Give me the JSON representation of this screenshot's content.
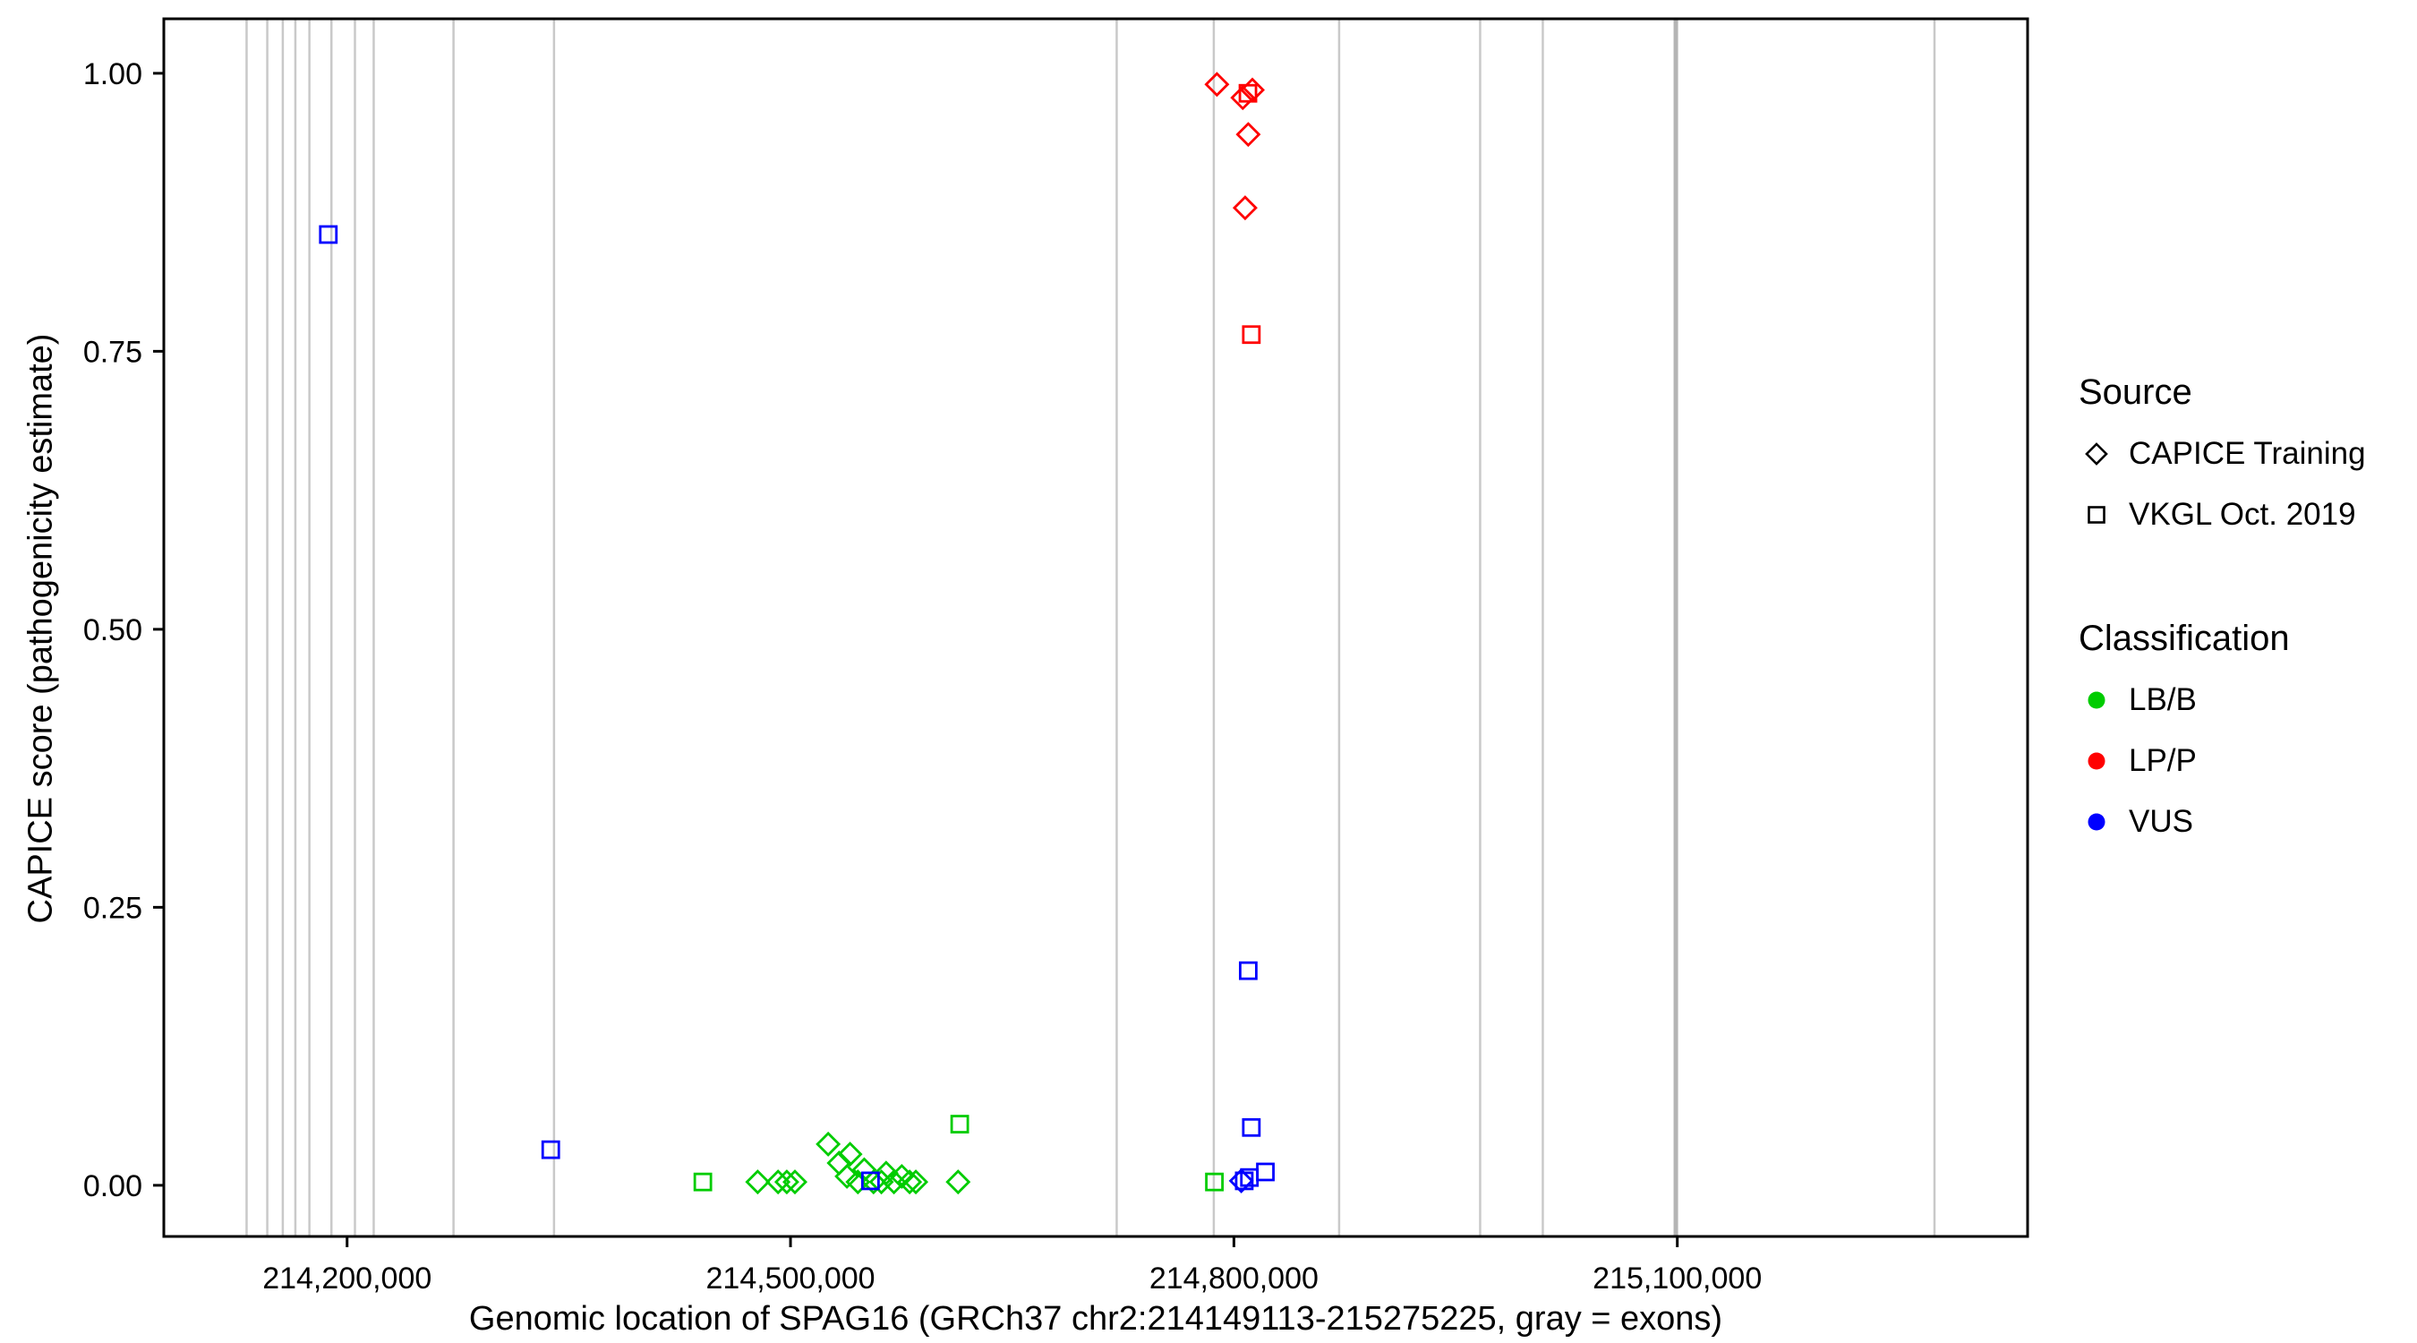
{
  "chart_data": {
    "type": "scatter",
    "title": "",
    "xlabel": "Genomic location of SPAG16 (GRCh37 chr2:214149113-215275225, gray = exons)",
    "ylabel": "CAPICE score (pathogenicity estimate)",
    "xlim": [
      214076000,
      215337000
    ],
    "ylim": [
      -0.046,
      1.049
    ],
    "x_ticks": [
      {
        "value": 214200000,
        "label": "214,200,000"
      },
      {
        "value": 214500000,
        "label": "214,500,000"
      },
      {
        "value": 214800000,
        "label": "214,800,000"
      },
      {
        "value": 215100000,
        "label": "215,100,000"
      }
    ],
    "y_ticks": [
      {
        "value": 0.0,
        "label": "0.00"
      },
      {
        "value": 0.25,
        "label": "0.25"
      },
      {
        "value": 0.5,
        "label": "0.50"
      },
      {
        "value": 0.75,
        "label": "0.75"
      },
      {
        "value": 1.0,
        "label": "1.00"
      }
    ],
    "grid": false,
    "legend_position": "right",
    "exon_color": "#c9c9c9",
    "exon_wide_color": "#b5b5b5",
    "series_colors": {
      "LB/B": "#00cc00",
      "LP/P": "#ff0000",
      "VUS": "#0000ff"
    },
    "shape_by_source": {
      "CAPICE Training": "diamond",
      "VKGL Oct. 2019": "square"
    },
    "exons": [
      {
        "x": 214132000
      },
      {
        "x": 214146000
      },
      {
        "x": 214156500
      },
      {
        "x": 214165000
      },
      {
        "x": 214174500
      },
      {
        "x": 214189400
      },
      {
        "x": 214205300
      },
      {
        "x": 214218000
      },
      {
        "x": 214272000
      },
      {
        "x": 214340000
      },
      {
        "x": 214720700
      },
      {
        "x": 214786400
      },
      {
        "x": 214871200
      },
      {
        "x": 214966600
      },
      {
        "x": 215009000
      },
      {
        "x": 215099000,
        "wide": true
      },
      {
        "x": 215274000
      }
    ],
    "points": [
      {
        "x": 214477800,
        "y": 0.003,
        "classification": "LB/B",
        "source": "CAPICE Training"
      },
      {
        "x": 214491600,
        "y": 0.003,
        "classification": "LB/B",
        "source": "CAPICE Training"
      },
      {
        "x": 214497500,
        "y": 0.003,
        "classification": "LB/B",
        "source": "CAPICE Training"
      },
      {
        "x": 214503000,
        "y": 0.003,
        "classification": "LB/B",
        "source": "CAPICE Training"
      },
      {
        "x": 214525500,
        "y": 0.037,
        "classification": "LB/B",
        "source": "CAPICE Training"
      },
      {
        "x": 214532900,
        "y": 0.02,
        "classification": "LB/B",
        "source": "CAPICE Training"
      },
      {
        "x": 214538200,
        "y": 0.008,
        "classification": "LB/B",
        "source": "CAPICE Training"
      },
      {
        "x": 214540300,
        "y": 0.028,
        "classification": "LB/B",
        "source": "CAPICE Training"
      },
      {
        "x": 214545600,
        "y": 0.003,
        "classification": "LB/B",
        "source": "CAPICE Training"
      },
      {
        "x": 214549900,
        "y": 0.014,
        "classification": "LB/B",
        "source": "CAPICE Training"
      },
      {
        "x": 214556200,
        "y": 0.003,
        "classification": "LB/B",
        "source": "CAPICE Training"
      },
      {
        "x": 214561500,
        "y": 0.003,
        "classification": "LB/B",
        "source": "CAPICE Training"
      },
      {
        "x": 214564700,
        "y": 0.011,
        "classification": "LB/B",
        "source": "CAPICE Training"
      },
      {
        "x": 214570000,
        "y": 0.003,
        "classification": "LB/B",
        "source": "CAPICE Training"
      },
      {
        "x": 214575300,
        "y": 0.008,
        "classification": "LB/B",
        "source": "CAPICE Training"
      },
      {
        "x": 214580600,
        "y": 0.003,
        "classification": "LB/B",
        "source": "CAPICE Training"
      },
      {
        "x": 214584800,
        "y": 0.003,
        "classification": "LB/B",
        "source": "CAPICE Training"
      },
      {
        "x": 214613400,
        "y": 0.003,
        "classification": "LB/B",
        "source": "CAPICE Training"
      },
      {
        "x": 214440700,
        "y": 0.003,
        "classification": "LB/B",
        "source": "VKGL Oct. 2019"
      },
      {
        "x": 214614500,
        "y": 0.055,
        "classification": "LB/B",
        "source": "VKGL Oct. 2019"
      },
      {
        "x": 214786800,
        "y": 0.003,
        "classification": "LB/B",
        "source": "VKGL Oct. 2019"
      },
      {
        "x": 214788500,
        "y": 0.99,
        "classification": "LP/P",
        "source": "CAPICE Training"
      },
      {
        "x": 214806000,
        "y": 0.978,
        "classification": "LP/P",
        "source": "CAPICE Training"
      },
      {
        "x": 214812500,
        "y": 0.985,
        "classification": "LP/P",
        "source": "CAPICE Training"
      },
      {
        "x": 214809700,
        "y": 0.945,
        "classification": "LP/P",
        "source": "CAPICE Training"
      },
      {
        "x": 214807600,
        "y": 0.879,
        "classification": "LP/P",
        "source": "CAPICE Training"
      },
      {
        "x": 214809500,
        "y": 0.982,
        "classification": "LP/P",
        "source": "VKGL Oct. 2019"
      },
      {
        "x": 214811800,
        "y": 0.765,
        "classification": "LP/P",
        "source": "VKGL Oct. 2019"
      },
      {
        "x": 214187300,
        "y": 0.855,
        "classification": "VUS",
        "source": "VKGL Oct. 2019"
      },
      {
        "x": 214337800,
        "y": 0.032,
        "classification": "VUS",
        "source": "VKGL Oct. 2019"
      },
      {
        "x": 214554100,
        "y": 0.004,
        "classification": "VUS",
        "source": "VKGL Oct. 2019"
      },
      {
        "x": 214809700,
        "y": 0.193,
        "classification": "VUS",
        "source": "VKGL Oct. 2019"
      },
      {
        "x": 214811800,
        "y": 0.052,
        "classification": "VUS",
        "source": "VKGL Oct. 2019"
      },
      {
        "x": 214807000,
        "y": 0.004,
        "classification": "VUS",
        "source": "VKGL Oct. 2019"
      },
      {
        "x": 214810500,
        "y": 0.007,
        "classification": "VUS",
        "source": "VKGL Oct. 2019"
      },
      {
        "x": 214821300,
        "y": 0.012,
        "classification": "VUS",
        "source": "VKGL Oct. 2019"
      },
      {
        "x": 214805000,
        "y": 0.004,
        "classification": "VUS",
        "source": "CAPICE Training"
      }
    ]
  },
  "legend": {
    "source": {
      "title": "Source",
      "items": [
        {
          "label": "CAPICE Training",
          "shape": "diamond"
        },
        {
          "label": "VKGL Oct. 2019",
          "shape": "square"
        }
      ]
    },
    "classification": {
      "title": "Classification",
      "items": [
        {
          "label": "LB/B",
          "color": "#00cc00"
        },
        {
          "label": "LP/P",
          "color": "#ff0000"
        },
        {
          "label": "VUS",
          "color": "#0000ff"
        }
      ]
    }
  }
}
